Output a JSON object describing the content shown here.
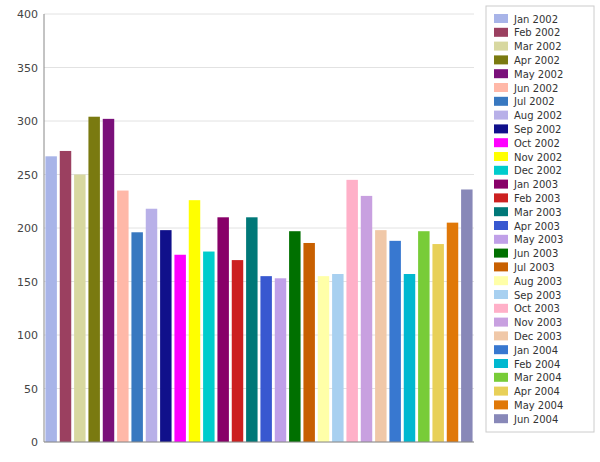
{
  "chart_data": {
    "type": "bar",
    "categories": [
      "Jan 2002",
      "Feb 2002",
      "Mar 2002",
      "Apr 2002",
      "May 2002",
      "Jun 2002",
      "Jul 2002",
      "Aug 2002",
      "Sep 2002",
      "Oct 2002",
      "Nov 2002",
      "Dec 2002",
      "Jan 2003",
      "Feb 2003",
      "Mar 2003",
      "Apr 2003",
      "May 2003",
      "Jun 2003",
      "Jul 2003",
      "Aug 2003",
      "Sep 2003",
      "Oct 2003",
      "Nov 2003",
      "Dec 2003",
      "Jan 2004",
      "Feb 2004",
      "Mar 2004",
      "Apr 2004",
      "May 2004",
      "Jun 2004"
    ],
    "values": [
      267,
      272,
      250,
      304,
      302,
      235,
      196,
      218,
      198,
      175,
      226,
      178,
      210,
      170,
      210,
      155,
      153,
      197,
      186,
      155,
      157,
      245,
      230,
      198,
      188,
      157,
      197,
      185,
      205,
      236
    ],
    "colors": [
      "#a8b4e8",
      "#9b4060",
      "#d8d8a0",
      "#7a7a10",
      "#7a107a",
      "#ffb8a8",
      "#3878c0",
      "#b8b0e8",
      "#10108b",
      "#ff00ff",
      "#ffff00",
      "#00cccc",
      "#880068",
      "#cc2020",
      "#007878",
      "#3858d0",
      "#c0a0e8",
      "#007000",
      "#c86000",
      "#ffffa8",
      "#a8d0f0",
      "#ffb0c8",
      "#c8a0e0",
      "#f0c8a8",
      "#3878d0",
      "#00b8d0",
      "#78cc38",
      "#e8d058",
      "#e07808",
      "#8888b8"
    ],
    "ylim": [
      0,
      400
    ],
    "yticks": [
      0,
      50,
      100,
      150,
      200,
      250,
      300,
      350,
      400
    ],
    "grid": true,
    "legend": "upper right",
    "tick_labels": "y"
  }
}
